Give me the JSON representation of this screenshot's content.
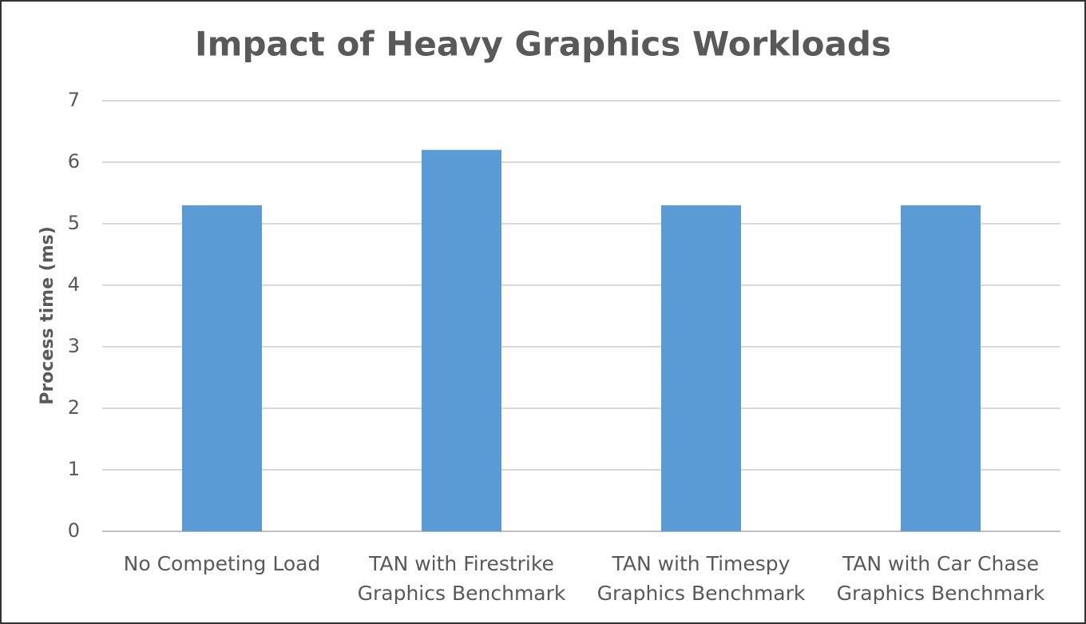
{
  "chart_data": {
    "type": "bar",
    "title": "Impact of Heavy Graphics Workloads",
    "y_label": "Process time (ms)",
    "categories": [
      "No Competing Load",
      "TAN with Firestrike Graphics Benchmark",
      "TAN with Timespy Graphics Benchmark",
      "TAN with Car Chase Graphics Benchmark"
    ],
    "values": [
      5.3,
      6.2,
      5.3,
      5.3
    ],
    "color": "#5b9bd5",
    "ylim": [
      0,
      7
    ],
    "yticks": [
      0,
      1,
      2,
      3,
      4,
      5,
      6,
      7
    ],
    "grid": true
  }
}
